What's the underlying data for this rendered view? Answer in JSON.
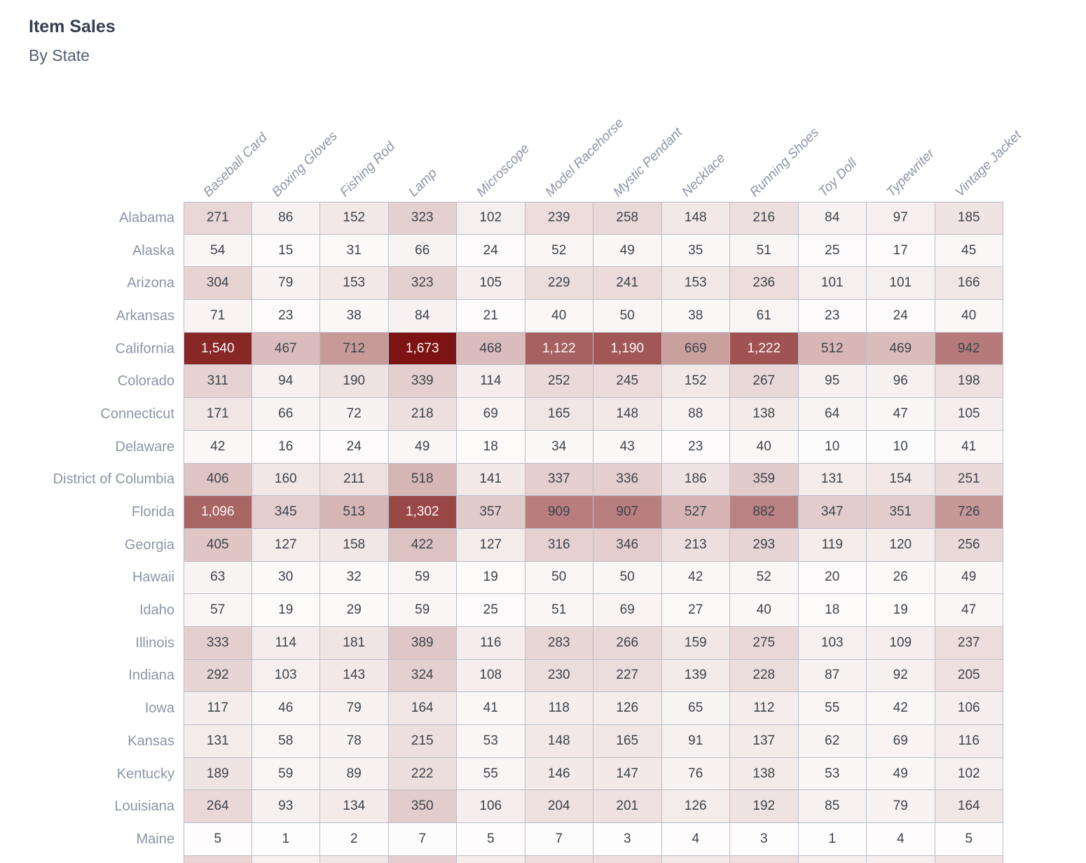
{
  "chart_data": {
    "type": "heatmap",
    "title": "Item Sales",
    "subtitle": "By State",
    "columns": [
      "Baseball Card",
      "Boxing Gloves",
      "Fishing Rod",
      "Lamp",
      "Microscope",
      "Model Racehorse",
      "Mystic Pendant",
      "Necklace",
      "Running Shoes",
      "Toy Doll",
      "Typewriter",
      "Vintage Jacket"
    ],
    "rows": [
      {
        "state": "Alabama",
        "values": [
          271,
          86,
          152,
          323,
          102,
          239,
          258,
          148,
          216,
          84,
          97,
          185
        ]
      },
      {
        "state": "Alaska",
        "values": [
          54,
          15,
          31,
          66,
          24,
          52,
          49,
          35,
          51,
          25,
          17,
          45
        ]
      },
      {
        "state": "Arizona",
        "values": [
          304,
          79,
          153,
          323,
          105,
          229,
          241,
          153,
          236,
          101,
          101,
          166
        ]
      },
      {
        "state": "Arkansas",
        "values": [
          71,
          23,
          38,
          84,
          21,
          40,
          50,
          38,
          61,
          23,
          24,
          40
        ]
      },
      {
        "state": "California",
        "values": [
          1540,
          467,
          712,
          1673,
          468,
          1122,
          1190,
          669,
          1222,
          512,
          469,
          942
        ]
      },
      {
        "state": "Colorado",
        "values": [
          311,
          94,
          190,
          339,
          114,
          252,
          245,
          152,
          267,
          95,
          96,
          198
        ]
      },
      {
        "state": "Connecticut",
        "values": [
          171,
          66,
          72,
          218,
          69,
          165,
          148,
          88,
          138,
          64,
          47,
          105
        ]
      },
      {
        "state": "Delaware",
        "values": [
          42,
          16,
          24,
          49,
          18,
          34,
          43,
          23,
          40,
          10,
          10,
          41
        ]
      },
      {
        "state": "District of Columbia",
        "values": [
          406,
          160,
          211,
          518,
          141,
          337,
          336,
          186,
          359,
          131,
          154,
          251
        ]
      },
      {
        "state": "Florida",
        "values": [
          1096,
          345,
          513,
          1302,
          357,
          909,
          907,
          527,
          882,
          347,
          351,
          726
        ]
      },
      {
        "state": "Georgia",
        "values": [
          405,
          127,
          158,
          422,
          127,
          316,
          346,
          213,
          293,
          119,
          120,
          256
        ]
      },
      {
        "state": "Hawaii",
        "values": [
          63,
          30,
          32,
          59,
          19,
          50,
          50,
          42,
          52,
          20,
          26,
          49
        ]
      },
      {
        "state": "Idaho",
        "values": [
          57,
          19,
          29,
          59,
          25,
          51,
          69,
          27,
          40,
          18,
          19,
          47
        ]
      },
      {
        "state": "Illinois",
        "values": [
          333,
          114,
          181,
          389,
          116,
          283,
          266,
          159,
          275,
          103,
          109,
          237
        ]
      },
      {
        "state": "Indiana",
        "values": [
          292,
          103,
          143,
          324,
          108,
          230,
          227,
          139,
          228,
          87,
          92,
          205
        ]
      },
      {
        "state": "Iowa",
        "values": [
          117,
          46,
          79,
          164,
          41,
          118,
          126,
          65,
          112,
          55,
          42,
          106
        ]
      },
      {
        "state": "Kansas",
        "values": [
          131,
          58,
          78,
          215,
          53,
          148,
          165,
          91,
          137,
          62,
          69,
          116
        ]
      },
      {
        "state": "Kentucky",
        "values": [
          189,
          59,
          89,
          222,
          55,
          146,
          147,
          76,
          138,
          53,
          49,
          102
        ]
      },
      {
        "state": "Louisiana",
        "values": [
          264,
          93,
          134,
          350,
          106,
          204,
          201,
          126,
          192,
          85,
          79,
          164
        ]
      },
      {
        "state": "Maine",
        "values": [
          5,
          1,
          2,
          7,
          5,
          7,
          3,
          4,
          3,
          1,
          4,
          5
        ]
      }
    ],
    "color_scale": {
      "min_value": 0,
      "max_value": 1673,
      "min_color": "#FEFDFD",
      "max_color": "#7D1413",
      "white_text_threshold": 0.6
    },
    "value_format": "thousands-comma",
    "layout": {
      "grid_on": true,
      "column_headers_rotated_deg": -45
    },
    "partial_next_row_colors": [
      "#EAD4D4",
      "#F8F1F1",
      "#F3E6E6",
      "#E6CDCD",
      "#F6EDED",
      "#EEDCDC",
      "#EEDCDC",
      "#F4E8E8",
      "#EFDEDE",
      "#F7EFEF",
      "#F7EFEF",
      "#F2E3E3"
    ]
  }
}
